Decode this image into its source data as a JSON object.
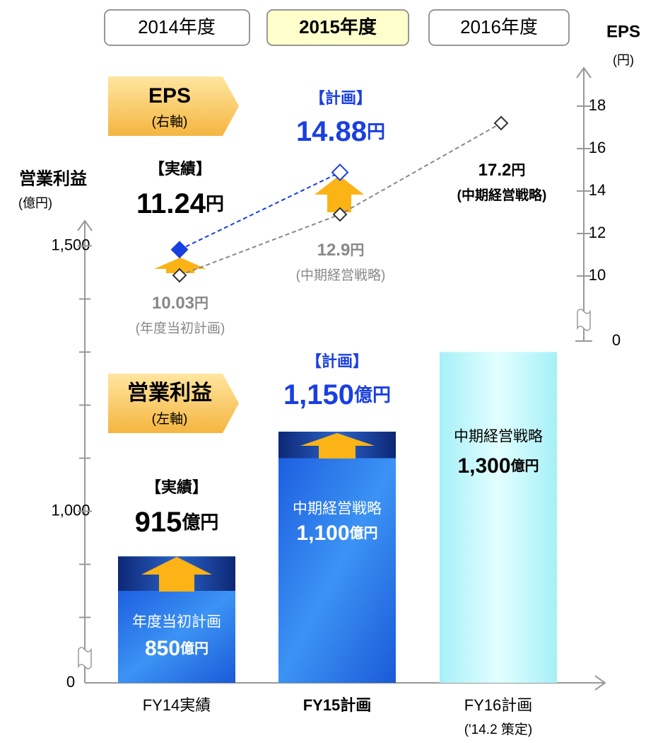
{
  "chart_data": {
    "type": "bar",
    "year_headers": [
      "2014年度",
      "2015年度",
      "2016年度"
    ],
    "categories": [
      "FY14実績",
      "FY15計画",
      "FY16計画"
    ],
    "category_notes": [
      null,
      null,
      "('14.2 策定)"
    ],
    "ylabel": "営業利益",
    "ylabel_unit": "(億円)",
    "y2label": "EPS",
    "y2label_unit": "(円)",
    "ylim": [
      0,
      1550
    ],
    "yticks": [
      0,
      {
        "value": 1000,
        "label": "1,000"
      },
      {
        "value": 1500,
        "label": "1,500"
      }
    ],
    "yminor": [
      800,
      900,
      1100,
      1200,
      1300,
      1400
    ],
    "y_break": true,
    "y2lim": [
      0,
      20
    ],
    "y2ticks": [
      0,
      10,
      12,
      14,
      16,
      18
    ],
    "y2_break": true,
    "callouts": [
      {
        "title": "EPS",
        "note": "(右軸)"
      },
      {
        "title": "営業利益",
        "note": "(左軸)"
      }
    ],
    "series": [
      {
        "point_labels": [
          "年度当初計画",
          "中期経営戦略",
          "中期経営戦略"
        ],
        "colors": [
          "#2b7ded",
          "#2b7ded",
          "#bff6fb"
        ],
        "values": [
          850,
          1100,
          1300
        ],
        "value_labels": [
          "850",
          "1,100",
          "1,300"
        ],
        "unit": "億円"
      },
      {
        "tags": [
          "【実績】",
          "【計画】",
          null
        ],
        "color": "#16337f",
        "values": [
          915,
          1150,
          null
        ],
        "value_labels": [
          "915",
          "1,150",
          null
        ],
        "unit": "億円"
      },
      {
        "type": "line",
        "axis": "y2",
        "tags": [
          "【実績】",
          "【計画】",
          null
        ],
        "color": "#1a3fe0",
        "marker_fills": [
          "#1a3fe0",
          "#ffffff"
        ],
        "values": [
          11.24,
          14.88,
          null
        ],
        "unit": "円"
      },
      {
        "type": "line",
        "axis": "y2",
        "point_labels": [
          "(年度当初計画)",
          "(中期経営戦略)",
          "(中期経営戦略)"
        ],
        "color": "#888888",
        "values": [
          10.03,
          12.9,
          17.2
        ],
        "unit": "円"
      }
    ]
  }
}
